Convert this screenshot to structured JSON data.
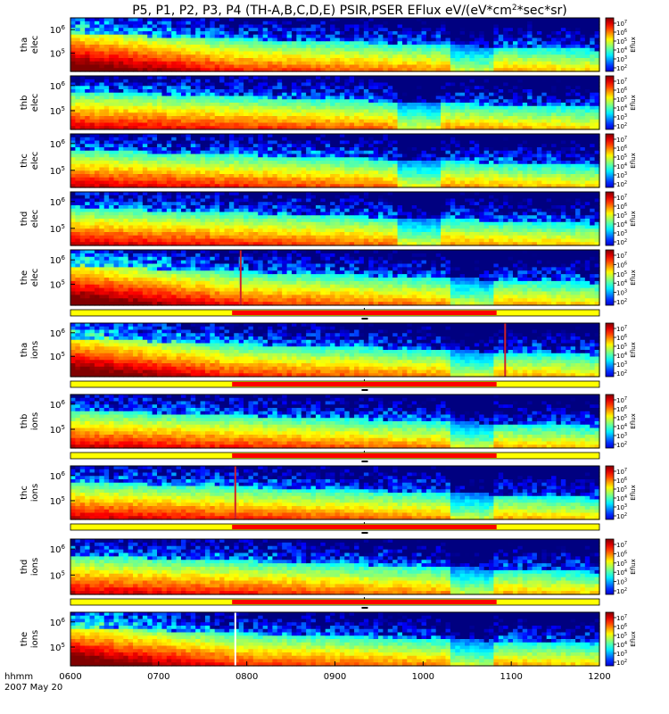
{
  "chart_data": {
    "type": "heatmap",
    "title": "P5, P1, P2, P3, P4 (TH-A,B,C,D,E) PSIR,PSER EFlux eV/(eV*cm",
    "title_sup": "2",
    "title_end": "*sec*sr)",
    "x_axis": {
      "label_line1": "hhmm",
      "label_line2": "2007 May 20",
      "ticks": [
        "0600",
        "0700",
        "0800",
        "0900",
        "1000",
        "1100",
        "1200"
      ],
      "range": [
        "06:00",
        "12:00"
      ]
    },
    "colorbar": {
      "label": "Eflux",
      "tick_base": "10",
      "tick_exponents": [
        "2",
        "3",
        "4",
        "5",
        "6",
        "7"
      ],
      "range_exponents": [
        2,
        7
      ]
    },
    "panels": [
      {
        "id": "tha-elec",
        "label_1": "tha",
        "label_2": "elec",
        "y_ticks": [
          {
            "base": "10",
            "exp": "6",
            "frac": 0.22
          },
          {
            "base": "10",
            "exp": "5",
            "frac": 0.66
          }
        ],
        "colorbar_exps": [
          "2",
          "3",
          "4",
          "5",
          "6",
          "7"
        ],
        "hot_until": 0.31,
        "disturb_from": 0.72,
        "spike": null,
        "sep": false
      },
      {
        "id": "thb-elec",
        "label_1": "thb",
        "label_2": "elec",
        "y_ticks": [
          {
            "base": "10",
            "exp": "6",
            "frac": 0.18
          },
          {
            "base": "10",
            "exp": "5",
            "frac": 0.65
          }
        ],
        "colorbar_exps": [
          "2",
          "3",
          "4",
          "5",
          "6",
          "7"
        ],
        "hot_until": 0.0,
        "disturb_from": 0.62,
        "spike": null,
        "sep": false
      },
      {
        "id": "thc-elec",
        "label_1": "thc",
        "label_2": "elec",
        "y_ticks": [
          {
            "base": "10",
            "exp": "6",
            "frac": 0.18
          },
          {
            "base": "10",
            "exp": "5",
            "frac": 0.68
          }
        ],
        "colorbar_exps": [
          "2",
          "3",
          "4",
          "5",
          "6",
          "7"
        ],
        "hot_until": 0.0,
        "disturb_from": 0.62,
        "spike": null,
        "sep": false
      },
      {
        "id": "thd-elec",
        "label_1": "thd",
        "label_2": "elec",
        "y_ticks": [
          {
            "base": "10",
            "exp": "6",
            "frac": 0.18
          },
          {
            "base": "10",
            "exp": "5",
            "frac": 0.68
          }
        ],
        "colorbar_exps": [
          "2",
          "3",
          "4",
          "5",
          "6",
          "7"
        ],
        "hot_until": 0.0,
        "disturb_from": 0.62,
        "spike": null,
        "sep": false
      },
      {
        "id": "the-elec",
        "label_1": "the",
        "label_2": "elec",
        "y_ticks": [
          {
            "base": "10",
            "exp": "6",
            "frac": 0.18
          },
          {
            "base": "10",
            "exp": "5",
            "frac": 0.62
          }
        ],
        "colorbar_exps": [
          "2",
          "3",
          "4",
          "5",
          "6",
          "7"
        ],
        "hot_until": 0.32,
        "disturb_from": 0.72,
        "spike": 0.32,
        "sep": true
      },
      {
        "id": "tha-ions",
        "label_1": "tha",
        "label_2": "ions",
        "y_ticks": [
          {
            "base": "10",
            "exp": "6",
            "frac": 0.18
          },
          {
            "base": "10",
            "exp": "5",
            "frac": 0.62
          }
        ],
        "colorbar_exps": [
          "2",
          "3",
          "4",
          "5",
          "6",
          "7"
        ],
        "hot_until": 0.31,
        "disturb_from": 0.72,
        "spike": 0.82,
        "sep": true
      },
      {
        "id": "thb-ions",
        "label_1": "thb",
        "label_2": "ions",
        "y_ticks": [
          {
            "base": "10",
            "exp": "6",
            "frac": 0.18
          },
          {
            "base": "10",
            "exp": "5",
            "frac": 0.65
          }
        ],
        "colorbar_exps": [
          "2",
          "3",
          "4",
          "5",
          "6",
          "7"
        ],
        "hot_until": 0.0,
        "disturb_from": 0.72,
        "spike": null,
        "sep": true
      },
      {
        "id": "thc-ions",
        "label_1": "thc",
        "label_2": "ions",
        "y_ticks": [
          {
            "base": "10",
            "exp": "6",
            "frac": 0.18
          },
          {
            "base": "10",
            "exp": "5",
            "frac": 0.65
          }
        ],
        "colorbar_exps": [
          "2",
          "3",
          "4",
          "5",
          "6",
          "7"
        ],
        "hot_until": 0.0,
        "disturb_from": 0.72,
        "spike": 0.31,
        "sep": true
      },
      {
        "id": "thd-ions",
        "label_1": "thd",
        "label_2": "ions",
        "y_ticks": [
          {
            "base": "10",
            "exp": "6",
            "frac": 0.18
          },
          {
            "base": "10",
            "exp": "5",
            "frac": 0.65
          }
        ],
        "colorbar_exps": [
          "2",
          "3",
          "4",
          "5",
          "6",
          "7"
        ],
        "hot_until": 0.0,
        "disturb_from": 0.72,
        "spike": null,
        "sep": true
      },
      {
        "id": "the-ions",
        "label_1": "the",
        "label_2": "ions",
        "y_ticks": [
          {
            "base": "10",
            "exp": "6",
            "frac": 0.18
          },
          {
            "base": "10",
            "exp": "5",
            "frac": 0.65
          }
        ],
        "colorbar_exps": [
          "2",
          "3",
          "4",
          "5",
          "6",
          "7"
        ],
        "hot_until": 0.31,
        "disturb_from": 0.72,
        "spike": 0.31,
        "sep": false
      }
    ],
    "mode_bar": {
      "colors": {
        "slow": "#ffff00",
        "fast": "#ff0000",
        "burst": "#000000"
      },
      "fast_interval": [
        "07:50",
        "10:50"
      ]
    }
  }
}
